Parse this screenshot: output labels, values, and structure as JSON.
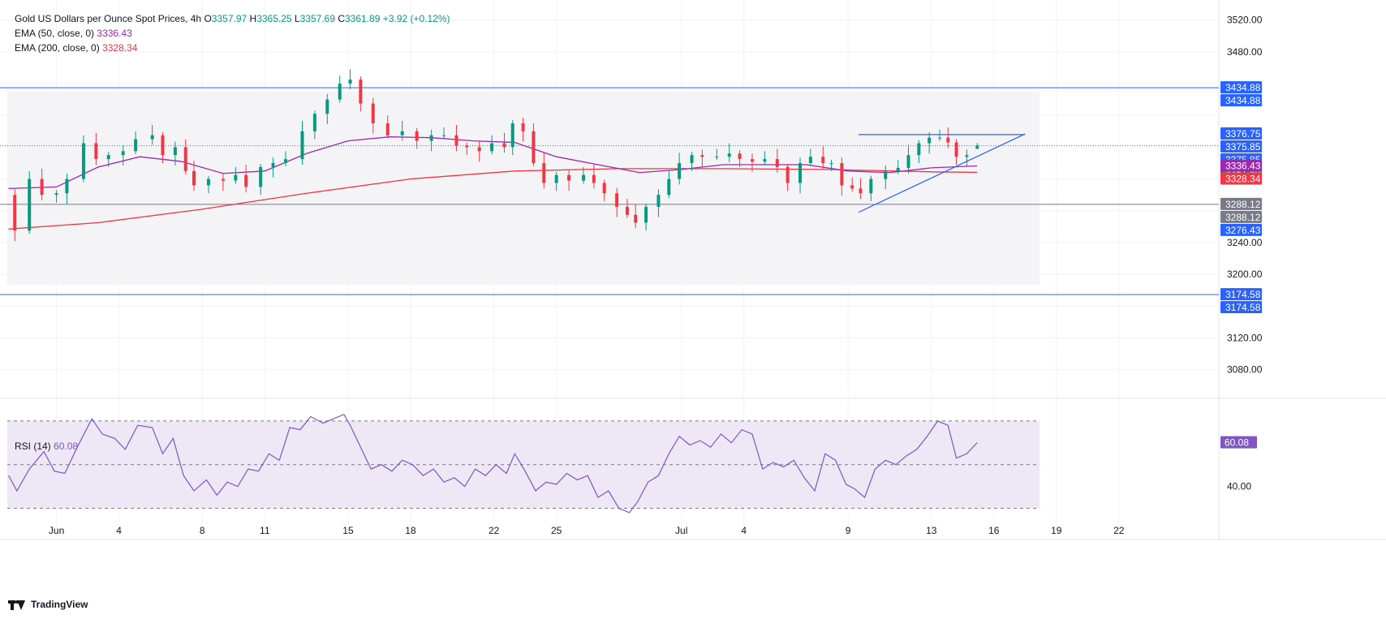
{
  "legend": {
    "title": "Gold US Dollars per Ounce Spot Prices, 4h",
    "o_label": "O",
    "o": "3357.97",
    "h_label": "H",
    "h": "3365.25",
    "l_label": "L",
    "l": "3357.69",
    "c_label": "C",
    "c": "3361.89",
    "change": "+3.92 (+0.12%)",
    "ema50_label": "EMA (50, close, 0)",
    "ema50": "3336.43",
    "ema200_label": "EMA (200, close, 0)",
    "ema200": "3328.34",
    "rsi_label": "RSI (14)",
    "rsi": "60.08"
  },
  "brand": "TradingView",
  "colors": {
    "up": "#089981",
    "down": "#f23645",
    "ema50": "#9c27b0",
    "ema200": "#f23645",
    "rsi": "#7e57c2",
    "hline": "#2962ff",
    "trend": "#2962ff",
    "shade": "#f4f4f6",
    "rsi_band": "#ede7f6"
  },
  "chart_data": [
    {
      "type": "candlestick",
      "title": "Gold US Dollars per Ounce Spot Prices, 4h",
      "timeframe": "4h",
      "ylim": [
        3045,
        3535
      ],
      "y_ticks": [
        3080,
        3120,
        3160,
        3200,
        3240,
        3280,
        3320,
        3360,
        3400,
        3440,
        3480,
        3520
      ],
      "y_tick_labels": [
        "3080.00",
        "3120.00",
        "3200.00",
        "3240.00",
        "3480.00",
        "3520.00"
      ],
      "y_tick_values": [
        3080,
        3120,
        3200,
        3240,
        3480,
        3520
      ],
      "x_ticks": [
        {
          "label": "Jun",
          "day": 1
        },
        {
          "label": "4",
          "day": 4
        },
        {
          "label": "8",
          "day": 8
        },
        {
          "label": "11",
          "day": 11
        },
        {
          "label": "15",
          "day": 15
        },
        {
          "label": "18",
          "day": 18
        },
        {
          "label": "22",
          "day": 22
        },
        {
          "label": "25",
          "day": 25
        },
        {
          "label": "Jul",
          "day": 31
        },
        {
          "label": "4",
          "day": 34
        },
        {
          "label": "9",
          "day": 39
        },
        {
          "label": "13",
          "day": 43
        },
        {
          "label": "16",
          "day": 46
        },
        {
          "label": "19",
          "day": 49
        },
        {
          "label": "22",
          "day": 52
        }
      ],
      "x_range_days": [
        -1.36,
        56.8
      ],
      "price_path": [
        [
          -1.3,
          3300
        ],
        [
          -1.0,
          3255
        ],
        [
          -0.3,
          3320
        ],
        [
          0.3,
          3300
        ],
        [
          1.0,
          3302
        ],
        [
          1.5,
          3320
        ],
        [
          2.3,
          3365
        ],
        [
          2.9,
          3345
        ],
        [
          3.5,
          3350
        ],
        [
          4.2,
          3355
        ],
        [
          4.8,
          3370
        ],
        [
          5.6,
          3375
        ],
        [
          6.1,
          3350
        ],
        [
          6.7,
          3360
        ],
        [
          7.2,
          3330
        ],
        [
          7.6,
          3312
        ],
        [
          8.3,
          3320
        ],
        [
          9.0,
          3318
        ],
        [
          9.6,
          3325
        ],
        [
          10.1,
          3310
        ],
        [
          10.8,
          3335
        ],
        [
          11.4,
          3340
        ],
        [
          12.0,
          3345
        ],
        [
          12.8,
          3380
        ],
        [
          13.4,
          3402
        ],
        [
          14.0,
          3420
        ],
        [
          14.6,
          3440
        ],
        [
          15.1,
          3445
        ],
        [
          15.6,
          3415
        ],
        [
          16.2,
          3390
        ],
        [
          16.9,
          3375
        ],
        [
          17.6,
          3380
        ],
        [
          18.3,
          3368
        ],
        [
          19.0,
          3375
        ],
        [
          19.6,
          3375
        ],
        [
          20.2,
          3362
        ],
        [
          20.7,
          3360
        ],
        [
          21.3,
          3355
        ],
        [
          21.9,
          3365
        ],
        [
          22.5,
          3360
        ],
        [
          22.9,
          3390
        ],
        [
          23.4,
          3380
        ],
        [
          23.9,
          3340
        ],
        [
          24.4,
          3315
        ],
        [
          25.0,
          3325
        ],
        [
          25.6,
          3318
        ],
        [
          26.3,
          3325
        ],
        [
          26.8,
          3315
        ],
        [
          27.3,
          3302
        ],
        [
          27.9,
          3285
        ],
        [
          28.4,
          3275
        ],
        [
          28.8,
          3265
        ],
        [
          29.3,
          3285
        ],
        [
          29.9,
          3300
        ],
        [
          30.4,
          3320
        ],
        [
          30.9,
          3340
        ],
        [
          31.5,
          3350
        ],
        [
          32.0,
          3348
        ],
        [
          32.7,
          3348
        ],
        [
          33.3,
          3352
        ],
        [
          33.8,
          3345
        ],
        [
          34.4,
          3342
        ],
        [
          35.0,
          3345
        ],
        [
          35.6,
          3335
        ],
        [
          36.1,
          3315
        ],
        [
          36.7,
          3340
        ],
        [
          37.2,
          3348
        ],
        [
          37.8,
          3340
        ],
        [
          38.2,
          3340
        ],
        [
          38.7,
          3312
        ],
        [
          39.2,
          3308
        ],
        [
          39.6,
          3302
        ],
        [
          40.1,
          3320
        ],
        [
          40.8,
          3330
        ],
        [
          41.4,
          3334
        ],
        [
          41.9,
          3350
        ],
        [
          42.4,
          3365
        ],
        [
          42.9,
          3372
        ],
        [
          43.4,
          3372
        ],
        [
          43.8,
          3366
        ],
        [
          44.2,
          3348
        ],
        [
          44.7,
          3350
        ],
        [
          45.2,
          3362
        ]
      ],
      "last_candle": {
        "open": 3357.97,
        "high": 3365.25,
        "low": 3357.69,
        "close": 3361.89
      },
      "ema50_path": [
        [
          -1.3,
          3308
        ],
        [
          1.0,
          3310
        ],
        [
          3.0,
          3335
        ],
        [
          5.0,
          3348
        ],
        [
          7.0,
          3342
        ],
        [
          9.0,
          3327
        ],
        [
          11.0,
          3330
        ],
        [
          13.0,
          3352
        ],
        [
          15.0,
          3368
        ],
        [
          17.0,
          3373
        ],
        [
          19.0,
          3372
        ],
        [
          21.0,
          3368
        ],
        [
          23.0,
          3366
        ],
        [
          25.0,
          3348
        ],
        [
          27.0,
          3338
        ],
        [
          29.0,
          3328
        ],
        [
          31.0,
          3332
        ],
        [
          33.0,
          3338
        ],
        [
          35.0,
          3338
        ],
        [
          37.0,
          3338
        ],
        [
          39.0,
          3330
        ],
        [
          41.0,
          3328
        ],
        [
          43.0,
          3334
        ],
        [
          45.2,
          3336.43
        ]
      ],
      "ema200_path": [
        [
          -1.3,
          3257
        ],
        [
          3.0,
          3265
        ],
        [
          8.0,
          3282
        ],
        [
          13.0,
          3302
        ],
        [
          18.0,
          3320
        ],
        [
          23.0,
          3330
        ],
        [
          28.0,
          3333
        ],
        [
          33.0,
          3333
        ],
        [
          38.0,
          3332
        ],
        [
          43.0,
          3329
        ],
        [
          45.2,
          3328.34
        ]
      ],
      "horizontal_lines": [
        3434.88,
        3288.12,
        3174.58
      ],
      "current_price_line": 3361.89,
      "resistance_segment": {
        "from": [
          39.5,
          3375.85
        ],
        "to": [
          47.5,
          3375.85
        ]
      },
      "trendline": {
        "from": [
          39.5,
          3278
        ],
        "to": [
          47.5,
          3376.75
        ]
      },
      "shaded_range": {
        "x": [
          -1.36,
          48.2
        ],
        "y": [
          3187,
          3430
        ]
      },
      "price_labels": [
        {
          "value": 3434.88,
          "text": "3434.88",
          "color": "#2962ff"
        },
        {
          "value": 3434.88,
          "text": "3434.88",
          "color": "#2962ff",
          "slot": 1
        },
        {
          "value": 3376.75,
          "text": "3376.75",
          "color": "#2962ff"
        },
        {
          "value": 3375.85,
          "text": "3375.85",
          "color": "#2962ff",
          "slot": 1
        },
        {
          "value": 3375.85,
          "text": "3375.85",
          "color": "#2962ff",
          "slot": 2
        },
        {
          "value": 3361.89,
          "text": "3361.89",
          "color": "#089981",
          "slot": 3
        },
        {
          "value": 3336.43,
          "text": "3336.43",
          "color": "#9c27b0"
        },
        {
          "value": 3328.34,
          "text": "3328.34",
          "color": "#f23645",
          "slot": 1
        },
        {
          "value": 3288.12,
          "text": "3288.12",
          "color": "#787b86"
        },
        {
          "value": 3288.12,
          "text": "3288.12",
          "color": "#787b86",
          "slot": 1
        },
        {
          "value": 3276.43,
          "text": "3276.43",
          "color": "#2962ff",
          "slot": 2
        },
        {
          "value": 3174.58,
          "text": "3174.58",
          "color": "#2962ff"
        },
        {
          "value": 3174.58,
          "text": "3174.58",
          "color": "#2962ff",
          "slot": 1
        }
      ]
    },
    {
      "type": "line",
      "title": "RSI (14)",
      "ylim": [
        25,
        80
      ],
      "band": [
        30,
        70
      ],
      "midline": 50,
      "y_tick_labels": [
        "40.00"
      ],
      "y_tick_values": [
        40
      ],
      "last_value": 60.08,
      "x": [
        -1.3,
        -0.9,
        -0.3,
        0.4,
        0.9,
        1.4,
        2.0,
        2.7,
        3.2,
        3.8,
        4.3,
        4.9,
        5.6,
        6.1,
        6.6,
        7.1,
        7.6,
        8.2,
        8.7,
        9.2,
        9.7,
        10.2,
        10.7,
        11.2,
        11.7,
        12.2,
        12.7,
        13.2,
        13.8,
        14.3,
        14.8,
        15.1,
        15.6,
        16.1,
        16.6,
        17.1,
        17.6,
        18.1,
        18.6,
        19.1,
        19.6,
        20.1,
        20.6,
        21.1,
        21.6,
        22.1,
        22.6,
        23.0,
        23.5,
        24.0,
        24.5,
        25.0,
        25.5,
        26.0,
        26.5,
        27.0,
        27.5,
        28.0,
        28.5,
        28.9,
        29.4,
        29.9,
        30.4,
        30.9,
        31.4,
        31.9,
        32.4,
        32.9,
        33.4,
        33.9,
        34.4,
        34.9,
        35.4,
        35.9,
        36.4,
        36.9,
        37.4,
        37.9,
        38.4,
        38.9,
        39.3,
        39.8,
        40.3,
        40.8,
        41.3,
        41.8,
        42.3,
        42.8,
        43.3,
        43.8,
        44.2,
        44.7,
        45.2
      ],
      "values": [
        45,
        38,
        48,
        56,
        47,
        46,
        58,
        71,
        64,
        62,
        57,
        68,
        67,
        55,
        62,
        45,
        38,
        43,
        36,
        42,
        40,
        48,
        47,
        55,
        52,
        67,
        66,
        72,
        69,
        71,
        73,
        68,
        58,
        48,
        50,
        47,
        52,
        50,
        45,
        48,
        42,
        44,
        40,
        48,
        45,
        50,
        46,
        55,
        47,
        38,
        42,
        41,
        46,
        43,
        45,
        35,
        38,
        30,
        28,
        33,
        42,
        45,
        55,
        63,
        59,
        61,
        58,
        64,
        60,
        66,
        64,
        48,
        51,
        49,
        52,
        44,
        38,
        55,
        52,
        41,
        39,
        35,
        48,
        52,
        50,
        54,
        57,
        63,
        70,
        68,
        53,
        55,
        60.08
      ]
    }
  ]
}
